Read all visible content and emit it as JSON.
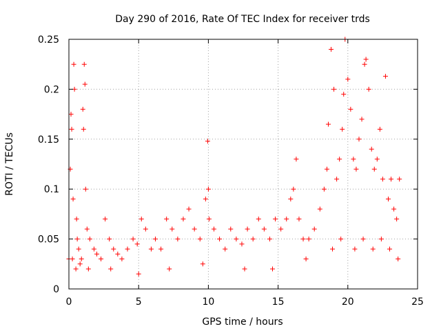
{
  "chart_data": {
    "type": "scatter",
    "title": "Day 290 of 2016, Rate Of TEC Index for receiver trds",
    "xlabel": "GPS time / hours",
    "ylabel": "ROTI / TECUs",
    "xlim": [
      0,
      25
    ],
    "ylim": [
      0,
      0.25
    ],
    "x_ticks": [
      "0",
      "5",
      "10",
      "15",
      "20",
      "25"
    ],
    "y_ticks": [
      "0",
      "0.05",
      "0.1",
      "0.15",
      "0.2",
      "0.25"
    ],
    "grid": true,
    "marker": "plus",
    "series": [
      {
        "name": "ROTI",
        "color": "#ff0000",
        "x": [
          0.0,
          0.1,
          0.15,
          0.2,
          0.3,
          0.35,
          0.4,
          0.55,
          0.6,
          0.7,
          0.9,
          1.0,
          1.05,
          1.1,
          1.15,
          1.2,
          1.3,
          1.5,
          1.8,
          2.0,
          2.3,
          2.6,
          2.9,
          3.2,
          3.5,
          3.8,
          4.2,
          4.6,
          4.9,
          5.2,
          5.5,
          5.9,
          6.2,
          6.6,
          7.0,
          7.4,
          7.8,
          8.2,
          8.6,
          9.0,
          9.4,
          9.8,
          9.95,
          10.0,
          10.05,
          10.4,
          10.8,
          11.2,
          11.6,
          12.0,
          12.4,
          12.8,
          13.2,
          13.6,
          14.0,
          14.4,
          14.8,
          15.2,
          15.6,
          15.9,
          16.1,
          16.3,
          16.5,
          16.8,
          17.2,
          17.6,
          18.0,
          18.3,
          18.5,
          18.6,
          18.8,
          19.0,
          19.2,
          19.4,
          19.6,
          19.7,
          19.8,
          20.0,
          20.2,
          20.4,
          20.6,
          20.8,
          21.0,
          21.2,
          21.3,
          21.5,
          21.7,
          21.9,
          22.1,
          22.3,
          22.5,
          22.7,
          22.9,
          23.1,
          23.3,
          23.5,
          23.7,
          0.25,
          0.5,
          0.8,
          1.4,
          3.0,
          5.0,
          7.2,
          9.6,
          12.6,
          14.6,
          17.0,
          18.9,
          19.5,
          20.5,
          21.1,
          21.8,
          22.4,
          23.0,
          23.6
        ],
        "y": [
          0.03,
          0.12,
          0.175,
          0.16,
          0.09,
          0.225,
          0.2,
          0.07,
          0.05,
          0.04,
          0.03,
          0.18,
          0.16,
          0.225,
          0.205,
          0.1,
          0.06,
          0.05,
          0.04,
          0.035,
          0.03,
          0.07,
          0.05,
          0.04,
          0.035,
          0.03,
          0.04,
          0.05,
          0.045,
          0.07,
          0.06,
          0.04,
          0.05,
          0.04,
          0.07,
          0.06,
          0.05,
          0.07,
          0.08,
          0.06,
          0.05,
          0.09,
          0.148,
          0.1,
          0.07,
          0.06,
          0.05,
          0.04,
          0.06,
          0.05,
          0.045,
          0.06,
          0.05,
          0.07,
          0.06,
          0.05,
          0.07,
          0.06,
          0.07,
          0.09,
          0.1,
          0.13,
          0.07,
          0.05,
          0.05,
          0.06,
          0.08,
          0.1,
          0.12,
          0.165,
          0.24,
          0.2,
          0.11,
          0.13,
          0.16,
          0.195,
          0.25,
          0.21,
          0.18,
          0.13,
          0.12,
          0.15,
          0.17,
          0.225,
          0.23,
          0.2,
          0.14,
          0.12,
          0.13,
          0.16,
          0.11,
          0.213,
          0.09,
          0.11,
          0.08,
          0.07,
          0.11,
          0.03,
          0.02,
          0.025,
          0.02,
          0.02,
          0.015,
          0.02,
          0.025,
          0.02,
          0.02,
          0.03,
          0.04,
          0.05,
          0.04,
          0.05,
          0.04,
          0.05,
          0.04,
          0.03
        ]
      }
    ]
  }
}
